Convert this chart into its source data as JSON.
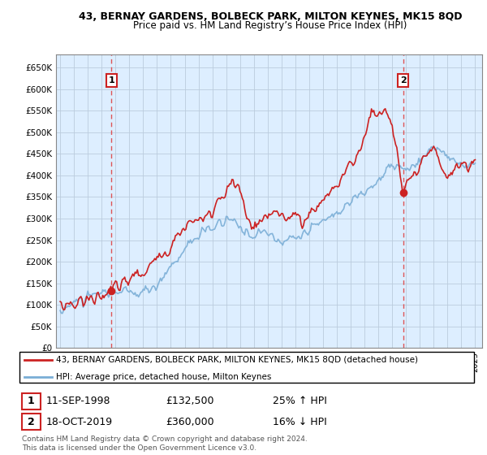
{
  "title1": "43, BERNAY GARDENS, BOLBECK PARK, MILTON KEYNES, MK15 8QD",
  "title2": "Price paid vs. HM Land Registry’s House Price Index (HPI)",
  "legend_line1": "43, BERNAY GARDENS, BOLBECK PARK, MILTON KEYNES, MK15 8QD (detached house)",
  "legend_line2": "HPI: Average price, detached house, Milton Keynes",
  "sale1_date": "11-SEP-1998",
  "sale1_price": "£132,500",
  "sale1_hpi": "25% ↑ HPI",
  "sale2_date": "18-OCT-2019",
  "sale2_price": "£360,000",
  "sale2_hpi": "16% ↓ HPI",
  "copyright": "Contains HM Land Registry data © Crown copyright and database right 2024.\nThis data is licensed under the Open Government Licence v3.0.",
  "hpi_color": "#7aaed6",
  "sale_color": "#cc2222",
  "vline_color": "#dd4444",
  "sale1_x": 1998.71,
  "sale1_y": 132500,
  "sale2_x": 2019.79,
  "sale2_y": 360000,
  "ylim_min": 0,
  "ylim_max": 680000,
  "xlim_start": 1994.7,
  "xlim_end": 2025.5,
  "chart_bg": "#ddeeff",
  "background_color": "#ffffff",
  "grid_color": "#bbccdd",
  "yticks": [
    0,
    50000,
    100000,
    150000,
    200000,
    250000,
    300000,
    350000,
    400000,
    450000,
    500000,
    550000,
    600000,
    650000
  ],
  "ytick_labels": [
    "£0",
    "£50K",
    "£100K",
    "£150K",
    "£200K",
    "£250K",
    "£300K",
    "£350K",
    "£400K",
    "£450K",
    "£500K",
    "£550K",
    "£600K",
    "£650K"
  ]
}
